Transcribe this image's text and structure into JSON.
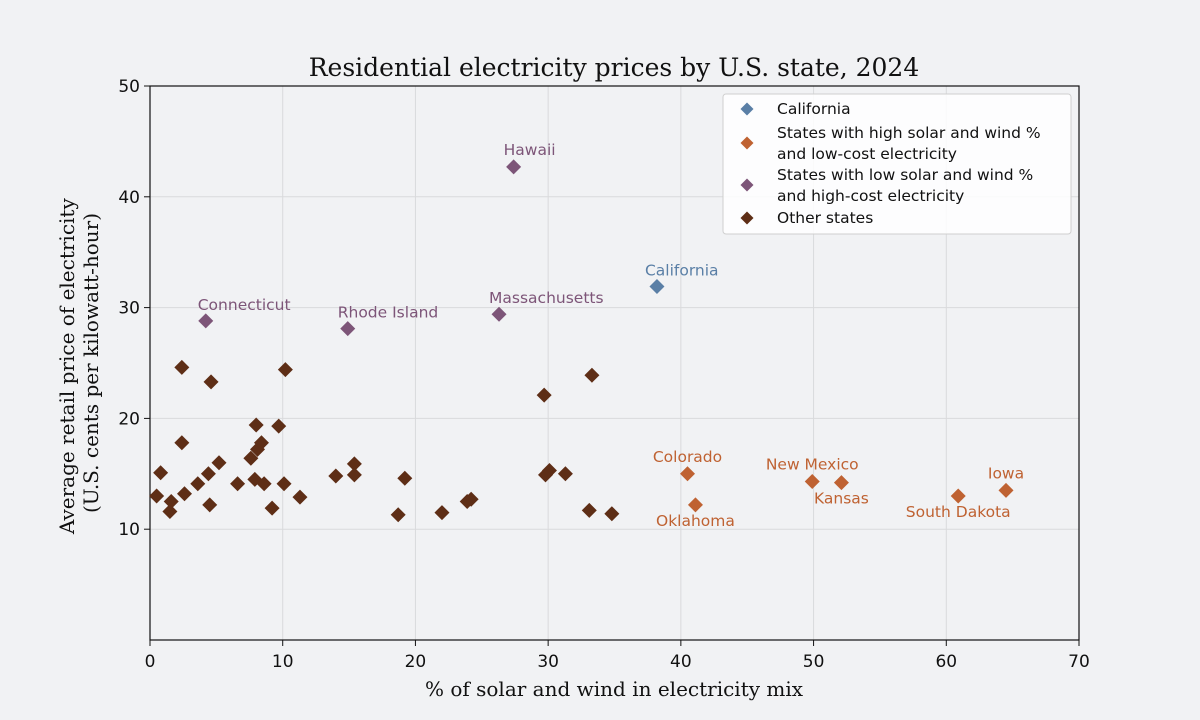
{
  "chart_data": {
    "type": "scatter",
    "title": "Residential electricity prices by U.S. state, 2024",
    "xlabel": "% of solar and wind in electricity mix",
    "ylabel_lines": [
      "Average retail price of electricity",
      "(U.S. cents per kilowatt-hour)"
    ],
    "xlim": [
      0,
      70
    ],
    "ylim": [
      0,
      50
    ],
    "x_ticks": [
      0,
      10,
      20,
      30,
      40,
      50,
      60,
      70
    ],
    "y_ticks": [
      10,
      20,
      30,
      40,
      50
    ],
    "grid": true,
    "marker": "diamond",
    "legend": {
      "placement": "top-right",
      "entries": [
        {
          "series": "california",
          "lines": [
            "California"
          ]
        },
        {
          "series": "high_solar_low_cost",
          "lines": [
            "States with high solar and wind %",
            "and low-cost electricity"
          ]
        },
        {
          "series": "low_solar_high_cost",
          "lines": [
            "States with low solar and wind %",
            "and high-cost electricity"
          ]
        },
        {
          "series": "other",
          "lines": [
            "Other states"
          ]
        }
      ]
    },
    "series": [
      {
        "id": "california",
        "name": "California",
        "color": "#5a7fa6",
        "points": [
          {
            "x": 38.2,
            "y": 31.9,
            "label": "California"
          }
        ]
      },
      {
        "id": "high_solar_low_cost",
        "name": "States with high solar and wind % and low-cost electricity",
        "color": "#bf6232",
        "points": [
          {
            "x": 40.5,
            "y": 15.0,
            "label": "Colorado"
          },
          {
            "x": 41.1,
            "y": 12.2,
            "label": "Oklahoma"
          },
          {
            "x": 49.9,
            "y": 14.3,
            "label": "New Mexico"
          },
          {
            "x": 52.1,
            "y": 14.2,
            "label": "Kansas"
          },
          {
            "x": 60.9,
            "y": 13.0,
            "label": "South Dakota"
          },
          {
            "x": 64.5,
            "y": 13.5,
            "label": "Iowa"
          }
        ]
      },
      {
        "id": "low_solar_high_cost",
        "name": "States with low solar and wind % and high-cost electricity",
        "color": "#7d5578",
        "points": [
          {
            "x": 27.4,
            "y": 42.7,
            "label": "Hawaii"
          },
          {
            "x": 4.2,
            "y": 28.8,
            "label": "Connecticut"
          },
          {
            "x": 14.9,
            "y": 28.1,
            "label": "Rhode Island"
          },
          {
            "x": 26.3,
            "y": 29.4,
            "label": "Massachusetts"
          }
        ]
      },
      {
        "id": "other",
        "name": "Other states",
        "color": "#5e2e16",
        "points": [
          {
            "x": 0.5,
            "y": 13.0
          },
          {
            "x": 0.8,
            "y": 15.1
          },
          {
            "x": 1.5,
            "y": 11.6
          },
          {
            "x": 1.6,
            "y": 12.5
          },
          {
            "x": 2.4,
            "y": 24.6
          },
          {
            "x": 2.4,
            "y": 17.8
          },
          {
            "x": 2.6,
            "y": 13.2
          },
          {
            "x": 3.6,
            "y": 14.1
          },
          {
            "x": 4.4,
            "y": 15.0
          },
          {
            "x": 4.5,
            "y": 12.2
          },
          {
            "x": 4.6,
            "y": 23.3
          },
          {
            "x": 5.2,
            "y": 16.0
          },
          {
            "x": 6.6,
            "y": 14.1
          },
          {
            "x": 7.6,
            "y": 16.4
          },
          {
            "x": 7.9,
            "y": 14.5
          },
          {
            "x": 8.0,
            "y": 19.4
          },
          {
            "x": 8.1,
            "y": 17.2
          },
          {
            "x": 8.4,
            "y": 17.8
          },
          {
            "x": 8.6,
            "y": 14.1
          },
          {
            "x": 9.2,
            "y": 11.9
          },
          {
            "x": 9.7,
            "y": 19.3
          },
          {
            "x": 10.1,
            "y": 14.1
          },
          {
            "x": 10.2,
            "y": 24.4
          },
          {
            "x": 11.3,
            "y": 12.9
          },
          {
            "x": 14.0,
            "y": 14.8
          },
          {
            "x": 15.4,
            "y": 15.9
          },
          {
            "x": 15.4,
            "y": 14.9
          },
          {
            "x": 18.7,
            "y": 11.3
          },
          {
            "x": 19.2,
            "y": 14.6
          },
          {
            "x": 22.0,
            "y": 11.5
          },
          {
            "x": 23.9,
            "y": 12.5
          },
          {
            "x": 24.2,
            "y": 12.7
          },
          {
            "x": 29.7,
            "y": 22.1
          },
          {
            "x": 29.8,
            "y": 14.9
          },
          {
            "x": 30.1,
            "y": 15.3
          },
          {
            "x": 31.3,
            "y": 15.0
          },
          {
            "x": 33.1,
            "y": 11.7
          },
          {
            "x": 33.3,
            "y": 23.9
          },
          {
            "x": 34.8,
            "y": 11.4
          }
        ]
      }
    ]
  }
}
